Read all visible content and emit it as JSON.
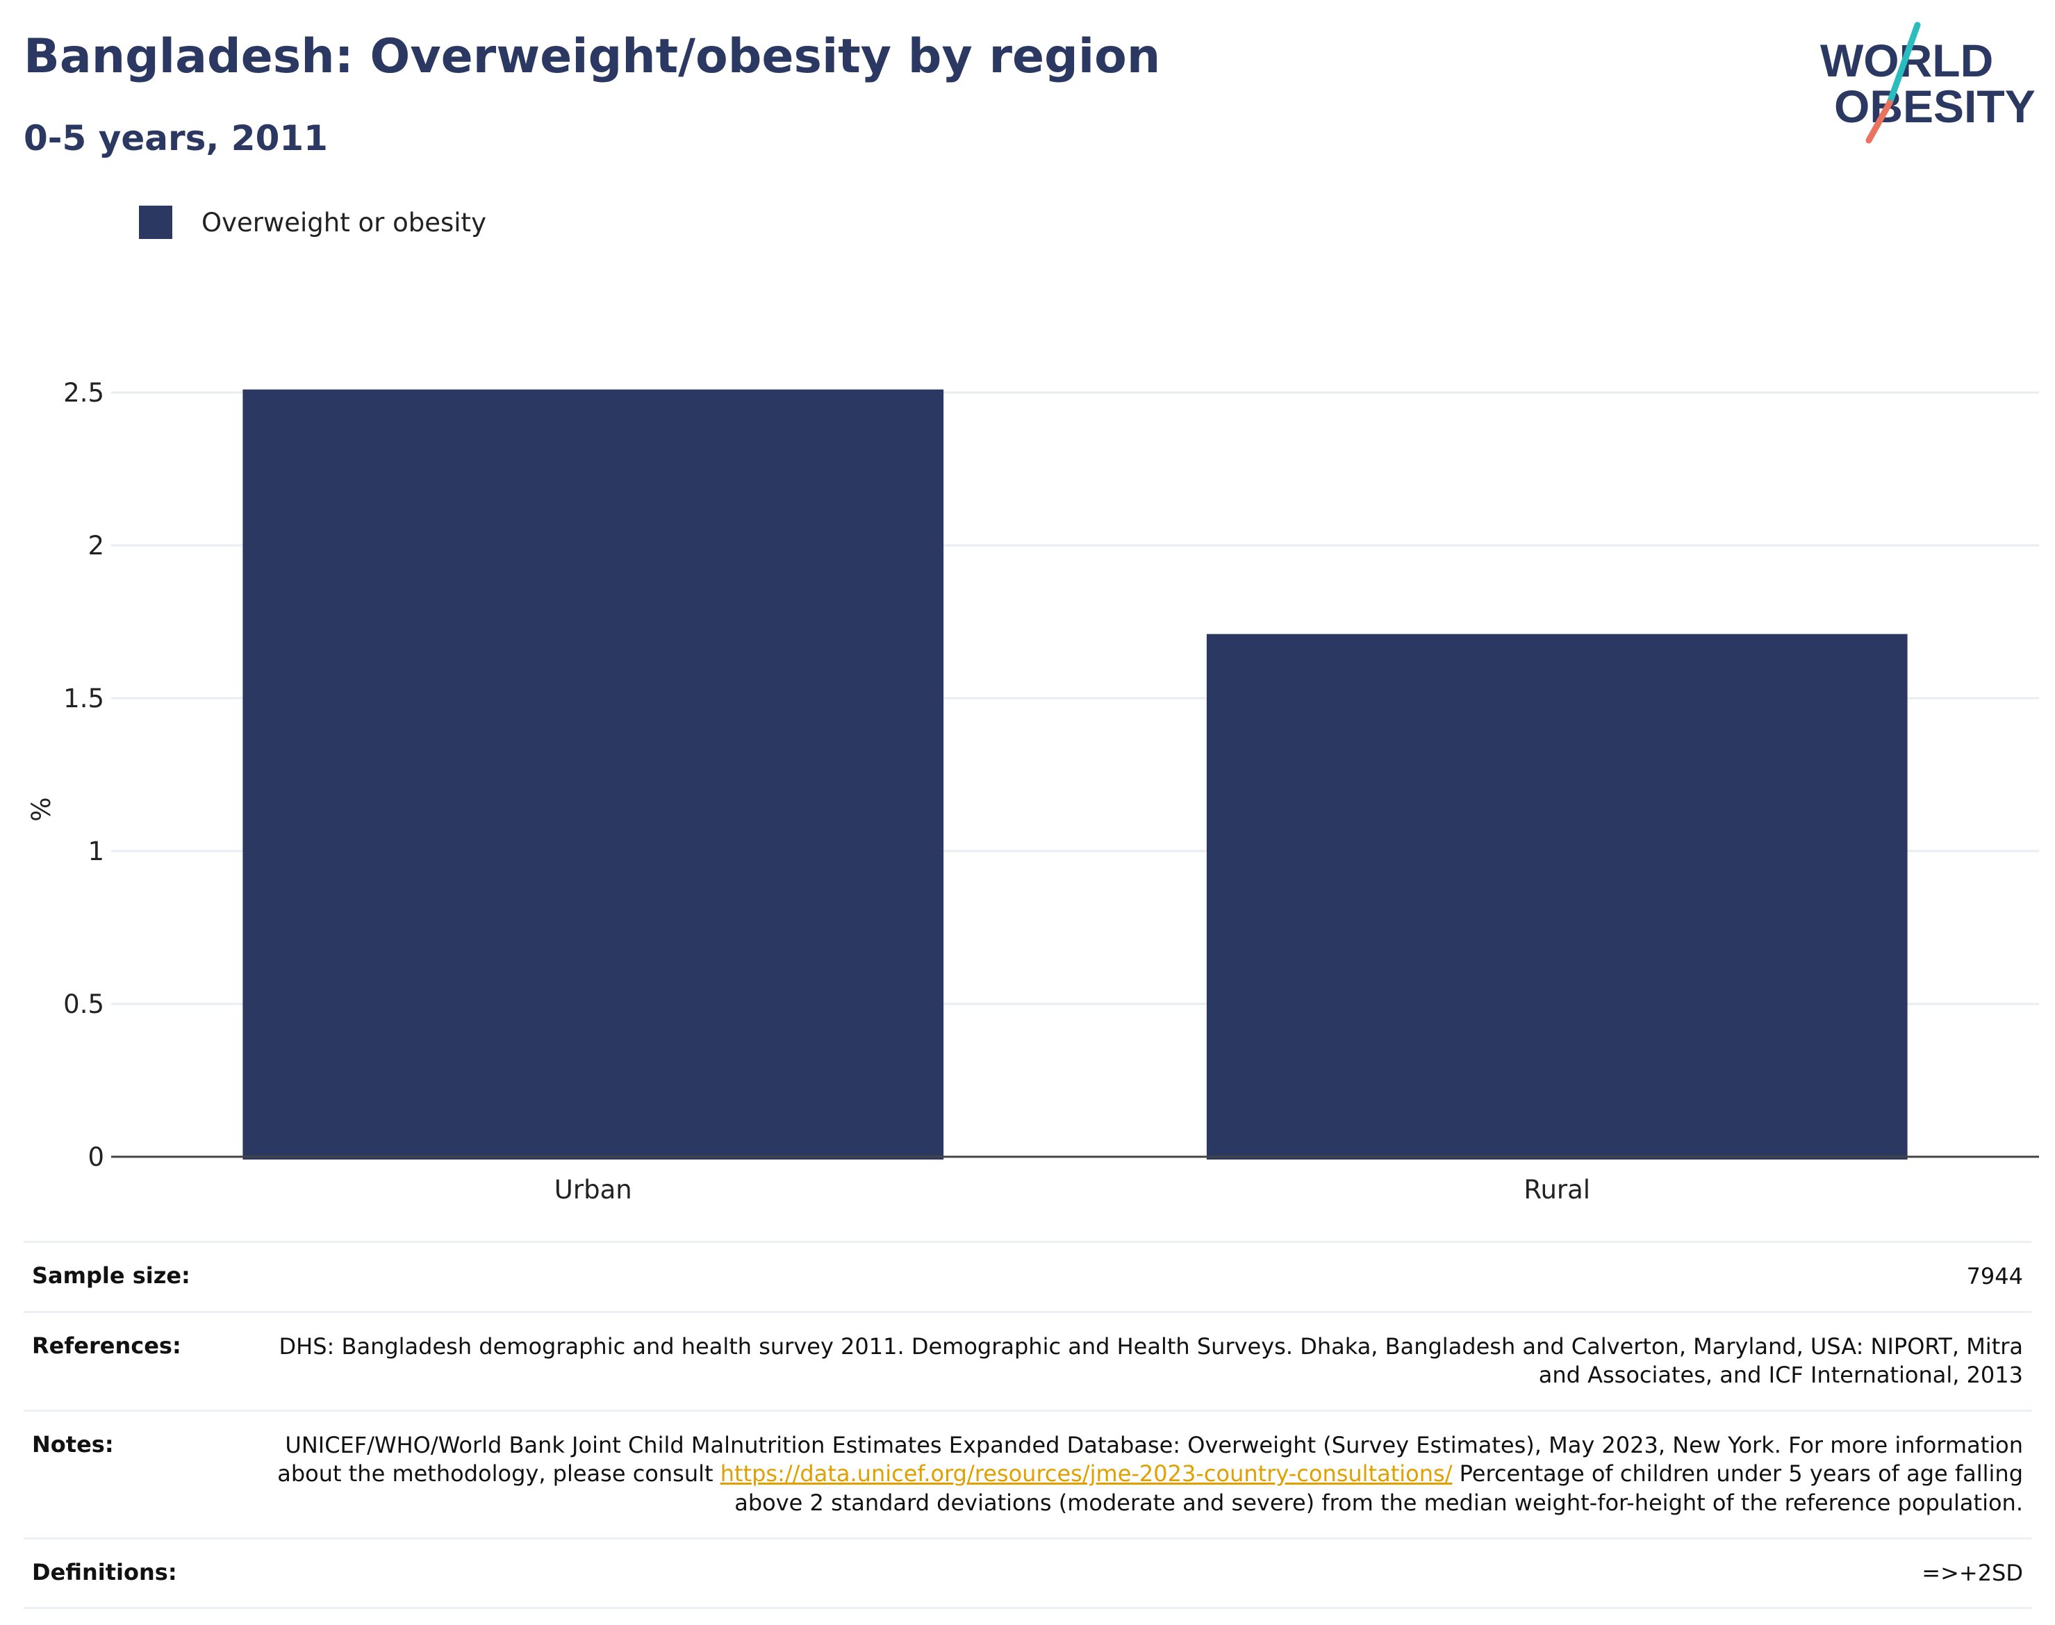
{
  "header": {
    "title": "Bangladesh: Overweight/obesity by region",
    "subtitle": "0-5 years, 2011"
  },
  "logo": {
    "line1": "WORLD",
    "line2": "OBESITY"
  },
  "colors": {
    "bar": "#2a3862",
    "accent_teal": "#2bbdbd",
    "accent_salmon": "#e9735f",
    "link": "#e0a000",
    "grid": "#e9ecf2"
  },
  "chart_data": {
    "type": "bar",
    "title": "Bangladesh: Overweight/obesity by region",
    "subtitle": "0-5 years, 2011",
    "categories": [
      "Urban",
      "Rural"
    ],
    "series": [
      {
        "name": "Overweight or obesity",
        "values": [
          2.51,
          1.71
        ]
      }
    ],
    "ylabel": "%",
    "xlabel": "",
    "ylim": [
      0,
      2.5
    ],
    "yticks": [
      "0",
      "0.5",
      "1",
      "1.5",
      "2",
      "2.5"
    ],
    "ytick_values": [
      0,
      0.5,
      1,
      1.5,
      2,
      2.5
    ],
    "grid": true,
    "legend": "top-left"
  },
  "info": {
    "sample_size": {
      "label": "Sample size:",
      "value": "7944"
    },
    "references": {
      "label": "References:",
      "value": "DHS: Bangladesh demographic and health survey 2011. Demographic and Health Surveys. Dhaka, Bangladesh and Calverton, Maryland, USA: NIPORT, Mitra and Associates, and ICF International, 2013"
    },
    "notes": {
      "label": "Notes:",
      "text_before": "UNICEF/WHO/World Bank Joint Child Malnutrition Estimates Expanded Database: Overweight (Survey Estimates), May 2023, New York. For more information about the methodology, please consult ",
      "link": "https://data.unicef.org/resources/jme-2023-country-consultations/",
      "text_after": " Percentage of children under 5 years of age falling above 2 standard deviations (moderate and severe) from the median weight-for-height of the reference population."
    },
    "definitions": {
      "label": "Definitions:",
      "value": "=>+2SD"
    }
  }
}
